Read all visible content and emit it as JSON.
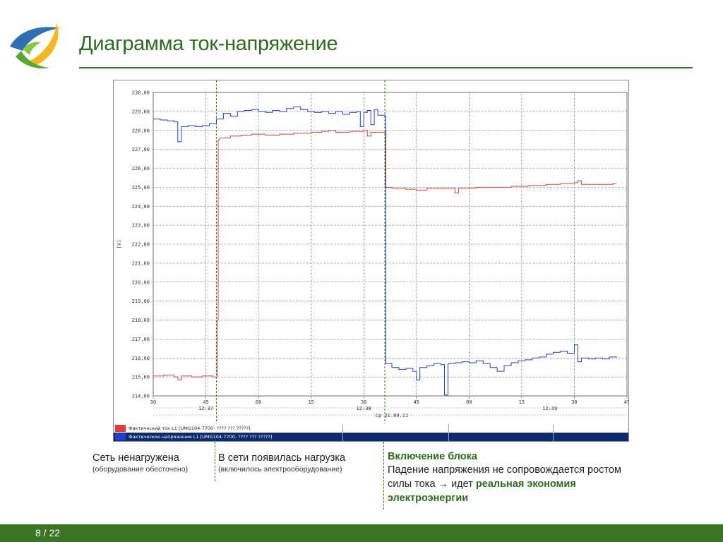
{
  "slide": {
    "title": "Диаграмма ток-напряжение",
    "page_number": "8 / 22",
    "colors": {
      "accent": "#3a7a22",
      "footer": "#3b7524",
      "current": "#e03a3a",
      "voltage": "#1f3fcf"
    }
  },
  "annotations": [
    {
      "head": "Сеть ненагружена",
      "sub": "(оборудование обесточено)"
    },
    {
      "head": "В сети появилась нагрузка",
      "sub": "(включилось электрооборудование)"
    },
    {
      "head": "Включение блока",
      "body_start": "Падение напряжения не сопровождается ростом силы тока → идет ",
      "body_bold": "реальная экономия электроэнергии"
    }
  ],
  "chart_data": {
    "type": "line",
    "ylabel": "[V]",
    "ylim": [
      214,
      230
    ],
    "y_ticks": [
      "214,00",
      "215,00",
      "216,00",
      "217,00",
      "218,00",
      "219,00",
      "220,00",
      "221,00",
      "222,00",
      "223,00",
      "224,00",
      "225,00",
      "226,00",
      "227,00",
      "228,00",
      "229,00",
      "230,00"
    ],
    "xlim": [
      0,
      135
    ],
    "x_ticks": [
      {
        "x": 0,
        "label": "30"
      },
      {
        "x": 15,
        "label": "45"
      },
      {
        "x": 30,
        "label": "00"
      },
      {
        "x": 45,
        "label": "15"
      },
      {
        "x": 60,
        "label": "30"
      },
      {
        "x": 75,
        "label": "45"
      },
      {
        "x": 90,
        "label": "00"
      },
      {
        "x": 105,
        "label": "15"
      },
      {
        "x": 120,
        "label": "30"
      },
      {
        "x": 135,
        "label": "45"
      }
    ],
    "x_minute_labels": [
      {
        "x": 15,
        "label": "12:37"
      },
      {
        "x": 60,
        "label": "12:38"
      },
      {
        "x": 113,
        "label": "12:39"
      }
    ],
    "x_date_label": {
      "x": 68,
      "label": "Ср 21.09.11"
    },
    "events": [
      {
        "x": 18
      },
      {
        "x": 66
      }
    ],
    "legend": [
      {
        "text": "Фактический ток L1 [UMG104-7700-        ????    ??? ?????]",
        "color": "#e03a3a"
      },
      {
        "text": "Фактическое напряжение L1 [UMG104-7700-        ????    ??? ?????]",
        "color": "#1f3fcf"
      }
    ],
    "series": [
      {
        "name": "Фактический ток L1",
        "color": "#e03a3a",
        "points": [
          [
            0,
            215.05
          ],
          [
            3,
            215.1
          ],
          [
            6,
            215.0
          ],
          [
            7,
            214.85
          ],
          [
            8,
            215.05
          ],
          [
            11,
            215.0
          ],
          [
            14,
            215.05
          ],
          [
            17,
            215.0
          ],
          [
            18,
            215.0
          ],
          [
            18.2,
            218.0
          ],
          [
            18.5,
            227.5
          ],
          [
            19,
            227.6
          ],
          [
            22,
            227.7
          ],
          [
            25,
            227.75
          ],
          [
            28,
            227.8
          ],
          [
            32,
            227.75
          ],
          [
            36,
            227.8
          ],
          [
            40,
            227.85
          ],
          [
            45,
            227.9
          ],
          [
            48,
            227.95
          ],
          [
            50,
            228.0
          ],
          [
            52,
            227.9
          ],
          [
            56,
            227.95
          ],
          [
            60,
            228.0
          ],
          [
            61,
            227.7
          ],
          [
            62,
            227.9
          ],
          [
            66,
            227.9
          ],
          [
            66.2,
            225.0
          ],
          [
            68,
            224.95
          ],
          [
            72,
            224.9
          ],
          [
            75,
            224.85
          ],
          [
            78,
            224.95
          ],
          [
            82,
            224.95
          ],
          [
            86,
            224.7
          ],
          [
            87,
            224.95
          ],
          [
            92,
            225.0
          ],
          [
            97,
            225.0
          ],
          [
            102,
            225.05
          ],
          [
            107,
            225.1
          ],
          [
            112,
            225.15
          ],
          [
            116,
            225.2
          ],
          [
            120,
            225.25
          ],
          [
            121,
            225.35
          ],
          [
            122,
            225.15
          ],
          [
            126,
            225.15
          ],
          [
            131,
            225.2
          ],
          [
            132,
            225.2
          ]
        ]
      },
      {
        "name": "Фактическое напряжение L1",
        "color": "#1f3fcf",
        "points": [
          [
            0,
            228.6
          ],
          [
            2,
            228.55
          ],
          [
            4,
            228.5
          ],
          [
            6,
            228.45
          ],
          [
            7,
            227.4
          ],
          [
            8,
            228.2
          ],
          [
            10,
            228.25
          ],
          [
            12,
            228.2
          ],
          [
            14,
            228.25
          ],
          [
            16,
            228.35
          ],
          [
            18,
            228.6
          ],
          [
            20,
            228.9
          ],
          [
            22,
            228.75
          ],
          [
            24,
            229.0
          ],
          [
            26,
            229.05
          ],
          [
            28,
            229.1
          ],
          [
            30,
            229.0
          ],
          [
            32,
            228.95
          ],
          [
            34,
            229.05
          ],
          [
            36,
            229.0
          ],
          [
            38,
            229.15
          ],
          [
            40,
            229.25
          ],
          [
            42,
            229.1
          ],
          [
            44,
            229.0
          ],
          [
            46,
            228.95
          ],
          [
            48,
            229.0
          ],
          [
            50,
            228.9
          ],
          [
            52,
            229.0
          ],
          [
            54,
            228.85
          ],
          [
            56,
            228.95
          ],
          [
            58,
            229.0
          ],
          [
            59,
            228.2
          ],
          [
            60,
            228.95
          ],
          [
            61,
            229.05
          ],
          [
            62,
            228.3
          ],
          [
            63,
            229.1
          ],
          [
            64,
            228.8
          ],
          [
            66,
            228.75
          ],
          [
            66.3,
            215.7
          ],
          [
            68,
            215.5
          ],
          [
            70,
            215.4
          ],
          [
            72,
            215.45
          ],
          [
            74,
            215.3
          ],
          [
            75,
            214.85
          ],
          [
            76,
            215.5
          ],
          [
            78,
            215.6
          ],
          [
            80,
            215.7
          ],
          [
            82,
            215.65
          ],
          [
            83,
            214.05
          ],
          [
            84,
            215.7
          ],
          [
            86,
            215.75
          ],
          [
            88,
            215.8
          ],
          [
            90,
            215.75
          ],
          [
            92,
            215.85
          ],
          [
            94,
            215.7
          ],
          [
            96,
            215.5
          ],
          [
            98,
            215.3
          ],
          [
            100,
            215.6
          ],
          [
            102,
            215.75
          ],
          [
            104,
            215.85
          ],
          [
            106,
            215.9
          ],
          [
            108,
            216.0
          ],
          [
            110,
            216.05
          ],
          [
            112,
            216.2
          ],
          [
            114,
            216.3
          ],
          [
            116,
            216.35
          ],
          [
            118,
            216.25
          ],
          [
            120,
            216.7
          ],
          [
            121,
            215.8
          ],
          [
            122,
            216.0
          ],
          [
            124,
            215.95
          ],
          [
            126,
            216.0
          ],
          [
            128,
            215.95
          ],
          [
            130,
            216.05
          ],
          [
            132,
            216.0
          ]
        ]
      }
    ]
  }
}
